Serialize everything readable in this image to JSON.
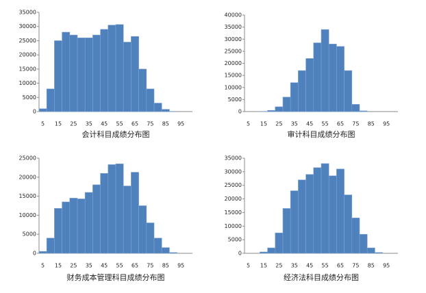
{
  "chart_data": [
    {
      "type": "bar",
      "title": "会计科目成绩分布图",
      "color": "#4f81bd",
      "categories": [
        "5",
        null,
        "15",
        null,
        "25",
        null,
        "35",
        null,
        "45",
        null,
        "55",
        null,
        "65",
        null,
        "75",
        null,
        "85",
        null,
        "95",
        null
      ],
      "values": [
        1000,
        8000,
        25000,
        28000,
        27000,
        26000,
        26000,
        27000,
        29000,
        30500,
        30700,
        24500,
        26500,
        15000,
        8000,
        3000,
        800,
        100,
        0,
        0
      ],
      "ylim": [
        0,
        35000
      ],
      "yticks": [
        0,
        5000,
        10000,
        15000,
        20000,
        25000,
        30000,
        35000
      ]
    },
    {
      "type": "bar",
      "title": "审计科目成绩分布图",
      "color": "#4f81bd",
      "categories": [
        "5",
        null,
        "15",
        null,
        "25",
        null,
        "35",
        null,
        "45",
        null,
        "55",
        null,
        "65",
        null,
        "75",
        null,
        "85",
        null,
        "95",
        null
      ],
      "values": [
        0,
        0,
        100,
        500,
        2000,
        6000,
        12000,
        17000,
        22000,
        28500,
        34000,
        28000,
        27000,
        17000,
        3000,
        300,
        0,
        0,
        0,
        0
      ],
      "ylim": [
        0,
        40000
      ],
      "yticks": [
        0,
        5000,
        10000,
        15000,
        20000,
        25000,
        30000,
        35000,
        40000
      ]
    },
    {
      "type": "bar",
      "title": "财务成本管理科目成绩分布图",
      "color": "#4f81bd",
      "categories": [
        "5",
        null,
        "15",
        null,
        "25",
        null,
        "35",
        null,
        "45",
        null,
        "55",
        null,
        "65",
        null,
        "75",
        null,
        "85",
        null,
        "95",
        null
      ],
      "values": [
        500,
        4000,
        11800,
        13500,
        14500,
        14300,
        16000,
        18000,
        21000,
        23300,
        23500,
        17700,
        21300,
        12500,
        8000,
        4000,
        1500,
        200,
        0,
        0
      ],
      "ylim": [
        0,
        25000
      ],
      "yticks": [
        0,
        5000,
        10000,
        15000,
        20000,
        25000
      ]
    },
    {
      "type": "bar",
      "title": "经济法科目成绩分布图",
      "color": "#4f81bd",
      "categories": [
        "5",
        null,
        "15",
        null,
        "25",
        null,
        "35",
        null,
        "45",
        null,
        "55",
        null,
        "65",
        null,
        "75",
        null,
        "85",
        null,
        "95",
        null
      ],
      "values": [
        0,
        0,
        500,
        2000,
        7500,
        16500,
        23000,
        27000,
        29000,
        31500,
        33000,
        28500,
        31000,
        21500,
        13000,
        7000,
        2000,
        300,
        0,
        0
      ],
      "ylim": [
        0,
        35000
      ],
      "yticks": [
        0,
        5000,
        10000,
        15000,
        20000,
        25000,
        30000,
        35000
      ]
    }
  ]
}
